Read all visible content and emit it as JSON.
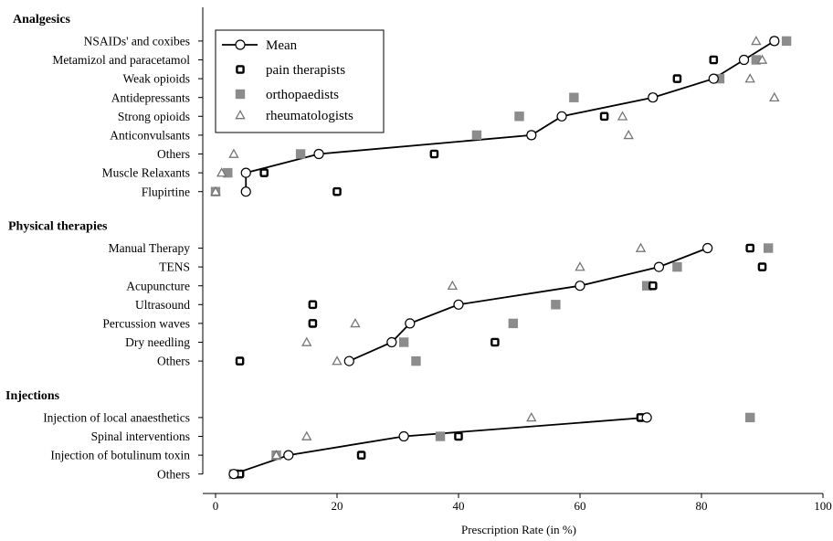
{
  "chart_data": {
    "type": "scatter",
    "xlabel": "Prescription Rate (in %)",
    "xlim": [
      0,
      100
    ],
    "xticks": [
      0,
      20,
      40,
      60,
      80,
      100
    ],
    "grid": false,
    "legend_position": "top-left",
    "series": [
      {
        "name": "Mean",
        "marker": "circle-open",
        "line": true
      },
      {
        "name": "pain therapists",
        "marker": "square-open-thick",
        "line": false
      },
      {
        "name": "orthopaedists",
        "marker": "square-filled",
        "line": false
      },
      {
        "name": "rheumatologists",
        "marker": "triangle-open",
        "line": false
      }
    ],
    "groups": [
      {
        "title": "Analgesics",
        "rows": [
          {
            "label": "NSAIDs' and coxibes",
            "mean": 92,
            "pain": 92,
            "ortho": 94,
            "rheum": 89
          },
          {
            "label": "Metamizol and paracetamol",
            "mean": 87,
            "pain": 82,
            "ortho": 89,
            "rheum": 90
          },
          {
            "label": "Weak opioids",
            "mean": 82,
            "pain": 76,
            "ortho": 83,
            "rheum": 88
          },
          {
            "label": "Antidepressants",
            "mean": 72,
            "pain": 72,
            "ortho": 59,
            "rheum": 92
          },
          {
            "label": "Strong opioids",
            "mean": 57,
            "pain": 64,
            "ortho": 50,
            "rheum": 67
          },
          {
            "label": "Anticonvulsants",
            "mean": 52,
            "pain": 52,
            "ortho": 43,
            "rheum": 68
          },
          {
            "label": "Others",
            "mean": 17,
            "pain": 36,
            "ortho": 14,
            "rheum": 3
          },
          {
            "label": "Muscle Relaxants",
            "mean": 5,
            "pain": 8,
            "ortho": 2,
            "rheum": 1
          },
          {
            "label": "Flupirtine",
            "mean": 5,
            "pain": 20,
            "ortho": 0,
            "rheum": 0
          }
        ]
      },
      {
        "title": "Physical therapies",
        "rows": [
          {
            "label": "Manual Therapy",
            "mean": 81,
            "pain": 88,
            "ortho": 91,
            "rheum": 70
          },
          {
            "label": "TENS",
            "mean": 73,
            "pain": 90,
            "ortho": 76,
            "rheum": 60
          },
          {
            "label": "Acupuncture",
            "mean": 60,
            "pain": 72,
            "ortho": 71,
            "rheum": 39
          },
          {
            "label": "Ultrasound",
            "mean": 40,
            "pain": 16,
            "ortho": 56,
            "rheum": null
          },
          {
            "label": "Percussion waves",
            "mean": 32,
            "pain": 16,
            "ortho": 49,
            "rheum": 23
          },
          {
            "label": "Dry needling",
            "mean": 29,
            "pain": 46,
            "ortho": 31,
            "rheum": 15
          },
          {
            "label": "Others",
            "mean": 22,
            "pain": 4,
            "ortho": 33,
            "rheum": 20
          }
        ]
      },
      {
        "title": "Injections",
        "rows": [
          {
            "label": "Injection of local anaesthetics",
            "mean": 71,
            "pain": 70,
            "ortho": 88,
            "rheum": 52
          },
          {
            "label": "Spinal interventions",
            "mean": 31,
            "pain": 40,
            "ortho": 37,
            "rheum": 15
          },
          {
            "label": "Injection of botulinum toxin",
            "mean": 12,
            "pain": 24,
            "ortho": 10,
            "rheum": 10
          },
          {
            "label": "Others",
            "mean": 3,
            "pain": 4,
            "ortho": 3,
            "rheum": null
          }
        ]
      }
    ]
  }
}
